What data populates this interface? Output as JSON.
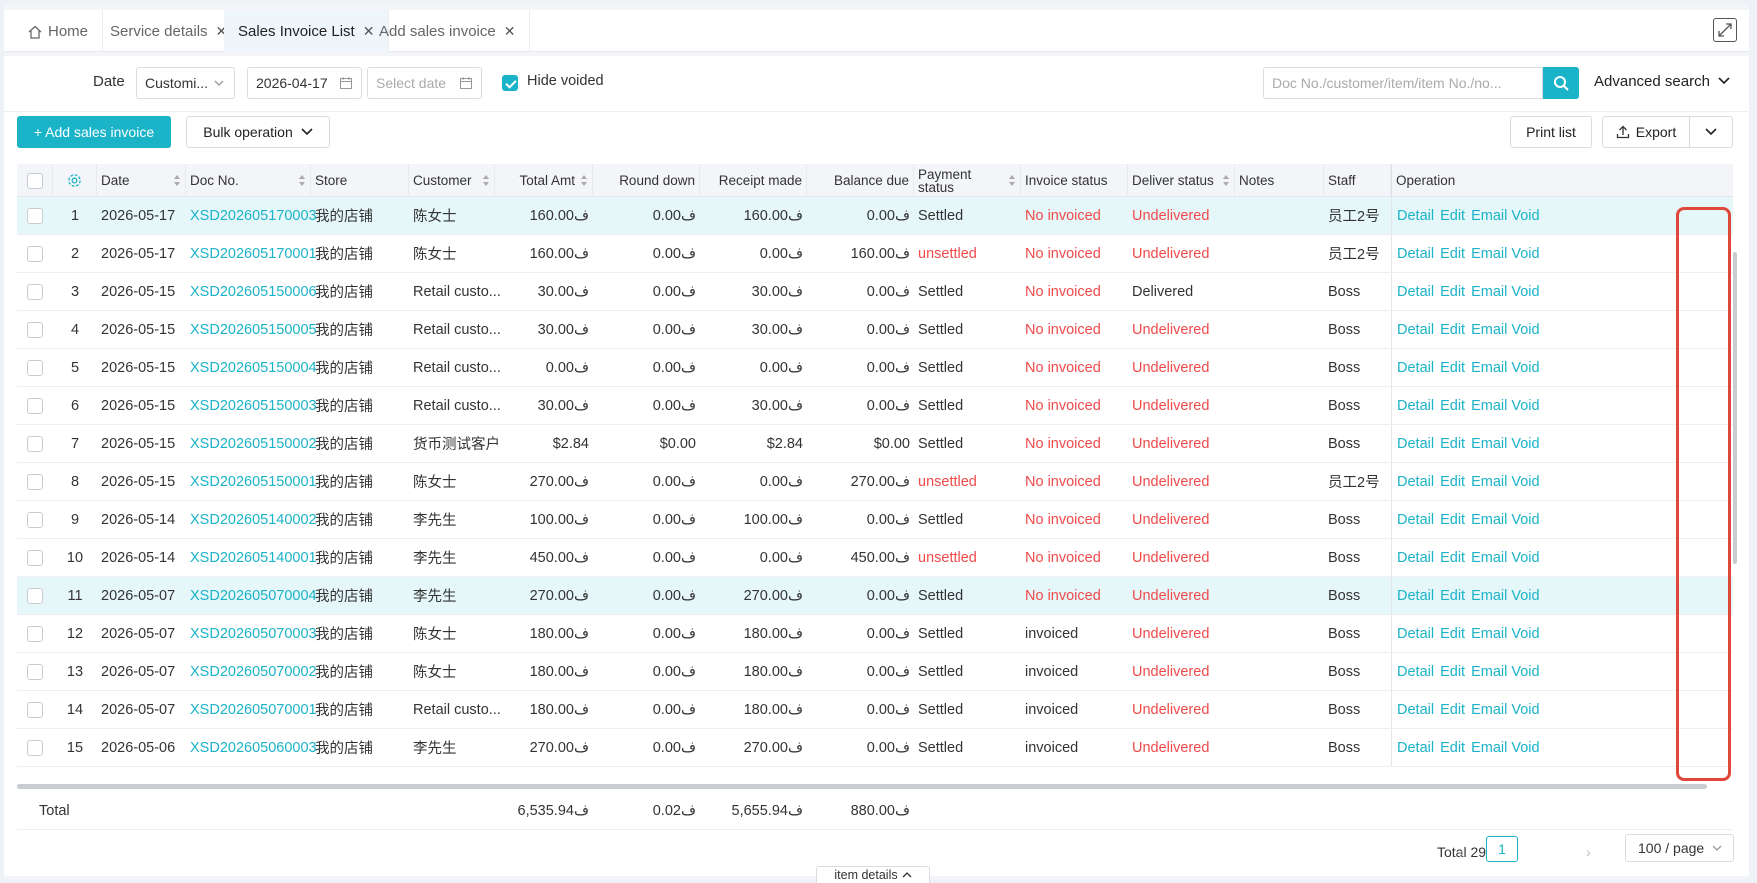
{
  "tabs": [
    {
      "label": "Home",
      "active": false
    },
    {
      "label": "Service details",
      "active": false
    },
    {
      "label": "Sales Invoice List",
      "active": true
    },
    {
      "label": "Add sales invoice",
      "active": false
    }
  ],
  "filters": {
    "date_label": "Date",
    "date_type": "Customi...",
    "start_date": "2026-04-17",
    "end_date_placeholder": "Select date",
    "hide_voided_label": "Hide voided",
    "hide_voided_checked": true,
    "search_placeholder": "Doc No./customer/item/item No./no...",
    "advanced_search": "Advanced search"
  },
  "toolbar": {
    "add_label": "+ Add sales invoice",
    "bulk_label": "Bulk operation",
    "print_label": "Print list",
    "export_label": "Export"
  },
  "columns": {
    "date": "Date",
    "doc_no": "Doc No.",
    "store": "Store",
    "customer": "Customer",
    "total": "Total Amt",
    "round": "Round down",
    "receipt": "Receipt made",
    "balance": "Balance due",
    "payment": "Payment status",
    "invoice": "Invoice status",
    "deliver": "Deliver status",
    "notes": "Notes",
    "staff": "Staff",
    "operation": "Operation"
  },
  "operations": [
    "Detail",
    "Edit",
    "Email",
    "Void"
  ],
  "rows": [
    {
      "no": "1",
      "date": "2026-05-17",
      "doc": "XSD202605170003",
      "store": "我的店铺",
      "customer": "陈女士",
      "total": "160.00ف",
      "round": "0.00ف",
      "receipt": "160.00ف",
      "balance": "0.00ف",
      "payment": "Settled",
      "invoice": "No invoiced",
      "deliver": "Undelivered",
      "notes": "",
      "staff": "员工2号",
      "hl": true
    },
    {
      "no": "2",
      "date": "2026-05-17",
      "doc": "XSD202605170001",
      "store": "我的店铺",
      "customer": "陈女士",
      "total": "160.00ف",
      "round": "0.00ف",
      "receipt": "0.00ف",
      "balance": "160.00ف",
      "payment": "unsettled",
      "invoice": "No invoiced",
      "deliver": "Undelivered",
      "notes": "",
      "staff": "员工2号",
      "hl": false
    },
    {
      "no": "3",
      "date": "2026-05-15",
      "doc": "XSD202605150006",
      "store": "我的店铺",
      "customer": "Retail custo...",
      "total": "30.00ف",
      "round": "0.00ف",
      "receipt": "30.00ف",
      "balance": "0.00ف",
      "payment": "Settled",
      "invoice": "No invoiced",
      "deliver": "Delivered",
      "notes": "",
      "staff": "Boss",
      "hl": false
    },
    {
      "no": "4",
      "date": "2026-05-15",
      "doc": "XSD202605150005",
      "store": "我的店铺",
      "customer": "Retail custo...",
      "total": "30.00ف",
      "round": "0.00ف",
      "receipt": "30.00ف",
      "balance": "0.00ف",
      "payment": "Settled",
      "invoice": "No invoiced",
      "deliver": "Undelivered",
      "notes": "",
      "staff": "Boss",
      "hl": false
    },
    {
      "no": "5",
      "date": "2026-05-15",
      "doc": "XSD202605150004",
      "store": "我的店铺",
      "customer": "Retail custo...",
      "total": "0.00ف",
      "round": "0.00ف",
      "receipt": "0.00ف",
      "balance": "0.00ف",
      "payment": "Settled",
      "invoice": "No invoiced",
      "deliver": "Undelivered",
      "notes": "",
      "staff": "Boss",
      "hl": false
    },
    {
      "no": "6",
      "date": "2026-05-15",
      "doc": "XSD202605150003",
      "store": "我的店铺",
      "customer": "Retail custo...",
      "total": "30.00ف",
      "round": "0.00ف",
      "receipt": "30.00ف",
      "balance": "0.00ف",
      "payment": "Settled",
      "invoice": "No invoiced",
      "deliver": "Undelivered",
      "notes": "",
      "staff": "Boss",
      "hl": false
    },
    {
      "no": "7",
      "date": "2026-05-15",
      "doc": "XSD202605150002",
      "store": "我的店铺",
      "customer": "货币测试客户",
      "total": "$2.84",
      "round": "$0.00",
      "receipt": "$2.84",
      "balance": "$0.00",
      "payment": "Settled",
      "invoice": "No invoiced",
      "deliver": "Undelivered",
      "notes": "",
      "staff": "Boss",
      "hl": false
    },
    {
      "no": "8",
      "date": "2026-05-15",
      "doc": "XSD202605150001",
      "store": "我的店铺",
      "customer": "陈女士",
      "total": "270.00ف",
      "round": "0.00ف",
      "receipt": "0.00ف",
      "balance": "270.00ف",
      "payment": "unsettled",
      "invoice": "No invoiced",
      "deliver": "Undelivered",
      "notes": "",
      "staff": "员工2号",
      "hl": false
    },
    {
      "no": "9",
      "date": "2026-05-14",
      "doc": "XSD202605140002",
      "store": "我的店铺",
      "customer": "李先生",
      "total": "100.00ف",
      "round": "0.00ف",
      "receipt": "100.00ف",
      "balance": "0.00ف",
      "payment": "Settled",
      "invoice": "No invoiced",
      "deliver": "Undelivered",
      "notes": "",
      "staff": "Boss",
      "hl": false
    },
    {
      "no": "10",
      "date": "2026-05-14",
      "doc": "XSD202605140001",
      "store": "我的店铺",
      "customer": "李先生",
      "total": "450.00ف",
      "round": "0.00ف",
      "receipt": "0.00ف",
      "balance": "450.00ف",
      "payment": "unsettled",
      "invoice": "No invoiced",
      "deliver": "Undelivered",
      "notes": "",
      "staff": "Boss",
      "hl": false
    },
    {
      "no": "11",
      "date": "2026-05-07",
      "doc": "XSD202605070004",
      "store": "我的店铺",
      "customer": "李先生",
      "total": "270.00ف",
      "round": "0.00ف",
      "receipt": "270.00ف",
      "balance": "0.00ف",
      "payment": "Settled",
      "invoice": "No invoiced",
      "deliver": "Undelivered",
      "notes": "",
      "staff": "Boss",
      "hl": true
    },
    {
      "no": "12",
      "date": "2026-05-07",
      "doc": "XSD202605070003",
      "store": "我的店铺",
      "customer": "陈女士",
      "total": "180.00ف",
      "round": "0.00ف",
      "receipt": "180.00ف",
      "balance": "0.00ف",
      "payment": "Settled",
      "invoice": "invoiced",
      "deliver": "Undelivered",
      "notes": "",
      "staff": "Boss",
      "hl": false
    },
    {
      "no": "13",
      "date": "2026-05-07",
      "doc": "XSD202605070002",
      "store": "我的店铺",
      "customer": "陈女士",
      "total": "180.00ف",
      "round": "0.00ف",
      "receipt": "180.00ف",
      "balance": "0.00ف",
      "payment": "Settled",
      "invoice": "invoiced",
      "deliver": "Undelivered",
      "notes": "",
      "staff": "Boss",
      "hl": false
    },
    {
      "no": "14",
      "date": "2026-05-07",
      "doc": "XSD202605070001",
      "store": "我的店铺",
      "customer": "Retail custo...",
      "total": "180.00ف",
      "round": "0.00ف",
      "receipt": "180.00ف",
      "balance": "0.00ف",
      "payment": "Settled",
      "invoice": "invoiced",
      "deliver": "Undelivered",
      "notes": "",
      "staff": "Boss",
      "hl": false
    },
    {
      "no": "15",
      "date": "2026-05-06",
      "doc": "XSD202605060003",
      "store": "我的店铺",
      "customer": "李先生",
      "total": "270.00ف",
      "round": "0.00ف",
      "receipt": "270.00ف",
      "balance": "0.00ف",
      "payment": "Settled",
      "invoice": "invoiced",
      "deliver": "Undelivered",
      "notes": "",
      "staff": "Boss",
      "hl": false
    }
  ],
  "totals": {
    "label": "Total",
    "total": "6,535.94ف",
    "round": "0.02ف",
    "receipt": "5,655.94ف",
    "balance": "880.00ف"
  },
  "pagination": {
    "total_label": "Total 29",
    "current_page": "1",
    "per_page": "100 / page"
  },
  "footer_tab": "item details",
  "colors": {
    "accent": "#1ab3c7",
    "danger": "#f04a4a",
    "highlight": "#e6f7fa"
  }
}
